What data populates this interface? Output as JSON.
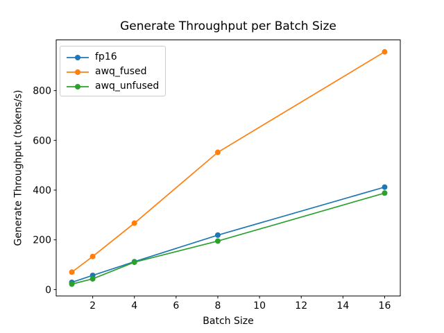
{
  "chart_data": {
    "type": "line",
    "title": "Generate Throughput per Batch Size",
    "xlabel": "Batch Size",
    "ylabel": "Generate Throughput (tokens/s)",
    "x": [
      1,
      2,
      4,
      8,
      16
    ],
    "series": [
      {
        "name": "fp16",
        "color": "#1f77b4",
        "values": [
          29,
          57,
          112,
          219,
          412
        ]
      },
      {
        "name": "awq_fused",
        "color": "#ff7f0e",
        "values": [
          70,
          133,
          267,
          552,
          956
        ]
      },
      {
        "name": "awq_unfused",
        "color": "#2ca02c",
        "values": [
          22,
          43,
          110,
          195,
          388
        ]
      }
    ],
    "xticks": [
      2,
      4,
      6,
      8,
      10,
      12,
      14,
      16
    ],
    "yticks": [
      0,
      200,
      400,
      600,
      800
    ],
    "xlim": [
      0.25,
      16.75
    ],
    "ylim": [
      -26,
      1004
    ],
    "legend": {
      "position": "upper left",
      "entries": [
        "fp16",
        "awq_fused",
        "awq_unfused"
      ]
    },
    "grid": false,
    "marker": "circle",
    "frame_color": "#000000",
    "background_color": "#ffffff"
  }
}
